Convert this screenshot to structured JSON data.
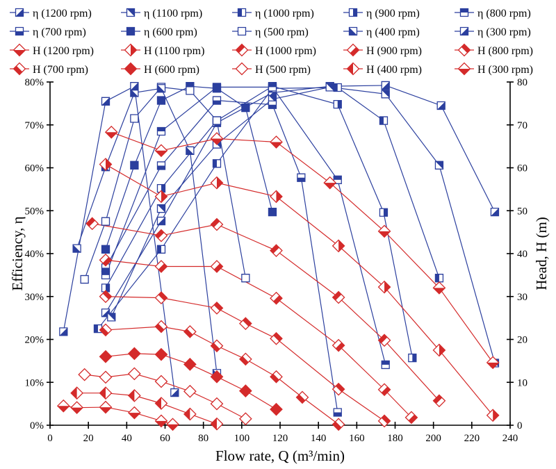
{
  "chart_data": {
    "type": "line",
    "xlabel": "Flow rate, Q (m³/min)",
    "ylabel_left": "Efficiency, η",
    "ylabel_right": "Head, H (m)",
    "xlim": [
      0,
      240
    ],
    "ylim_left": [
      0,
      80
    ],
    "ylim_right": [
      0,
      80
    ],
    "x_ticks": [
      "0",
      "20",
      "40",
      "60",
      "80",
      "100",
      "120",
      "140",
      "160",
      "180",
      "200",
      "220",
      "240"
    ],
    "y_left_ticks": [
      "0%",
      "10%",
      "20%",
      "30%",
      "40%",
      "50%",
      "60%",
      "70%",
      "80%"
    ],
    "y_right_ticks": [
      "0",
      "10",
      "20",
      "30",
      "40",
      "50",
      "60",
      "70",
      "80"
    ],
    "grid": false,
    "legend_position": "top",
    "colors": {
      "efficiency": "#2b3f9e",
      "head": "#d42a2a"
    },
    "series": [
      {
        "name": "η (1200 rpm)",
        "axis": "left",
        "marker": "square",
        "fill": "diag-lr",
        "points": [
          [
            29,
            26.2
          ],
          [
            58,
            47.6
          ],
          [
            87,
            70.5
          ],
          [
            116,
            77.5
          ],
          [
            146,
            79
          ],
          [
            175,
            79.2
          ],
          [
            204,
            74.5
          ],
          [
            232,
            49.7
          ]
        ]
      },
      {
        "name": "η (1100 rpm)",
        "axis": "left",
        "marker": "square",
        "fill": "diag-ur",
        "points": [
          [
            32,
            25.2
          ],
          [
            58,
            50.5
          ],
          [
            87,
            65.5
          ],
          [
            116,
            76
          ],
          [
            146,
            78.8
          ],
          [
            175,
            77.2
          ],
          [
            203,
            60.6
          ],
          [
            232,
            14.5
          ]
        ]
      },
      {
        "name": "η (1000 rpm)",
        "axis": "left",
        "marker": "square",
        "fill": "half-left",
        "points": [
          [
            25,
            22.5
          ],
          [
            58,
            41
          ],
          [
            87,
            61
          ],
          [
            116,
            78.5
          ],
          [
            150,
            78.7
          ],
          [
            174,
            71
          ],
          [
            203,
            34.3
          ]
        ]
      },
      {
        "name": "η (900 rpm)",
        "axis": "left",
        "marker": "square",
        "fill": "half-right",
        "points": [
          [
            29,
            32
          ],
          [
            58,
            55.2
          ],
          [
            87,
            71
          ],
          [
            116,
            79
          ],
          [
            150,
            74.8
          ],
          [
            174,
            49.6
          ],
          [
            189,
            15.7
          ]
        ]
      },
      {
        "name": "η (800 rpm)",
        "axis": "left",
        "marker": "square",
        "fill": "half-top",
        "points": [
          [
            29,
            35
          ],
          [
            58,
            68.5
          ],
          [
            87,
            78.8
          ],
          [
            116,
            78.8
          ],
          [
            150,
            57.2
          ],
          [
            175,
            14.1
          ]
        ]
      },
      {
        "name": "η (700 rpm)",
        "axis": "left",
        "marker": "square",
        "fill": "half-bottom",
        "points": [
          [
            29,
            36.7
          ],
          [
            58,
            60.5
          ],
          [
            87,
            75.7
          ],
          [
            116,
            74.7
          ],
          [
            131,
            57.7
          ],
          [
            150,
            3
          ]
        ]
      },
      {
        "name": "η (600 rpm)",
        "axis": "left",
        "marker": "square",
        "fill": "filled",
        "points": [
          [
            29,
            41
          ],
          [
            44,
            60.6
          ],
          [
            58,
            75.7
          ],
          [
            73,
            79
          ],
          [
            87,
            78.5
          ],
          [
            102,
            74
          ],
          [
            116,
            49.7
          ]
        ]
      },
      {
        "name": "η (500 rpm)",
        "axis": "left",
        "marker": "square",
        "fill": "open",
        "points": [
          [
            18,
            34
          ],
          [
            29,
            47.5
          ],
          [
            44,
            71.5
          ],
          [
            58,
            78.8
          ],
          [
            73,
            78
          ],
          [
            87,
            71
          ],
          [
            102,
            34.3
          ]
        ]
      },
      {
        "name": "η (400 rpm)",
        "axis": "left",
        "marker": "square",
        "fill": "diag-ll",
        "points": [
          [
            14,
            41.2
          ],
          [
            29,
            60.2
          ],
          [
            44,
            77.5
          ],
          [
            58,
            78.5
          ],
          [
            73,
            64
          ],
          [
            87,
            12.1
          ]
        ]
      },
      {
        "name": "η (300 rpm)",
        "axis": "left",
        "marker": "square",
        "fill": "diag-lr",
        "points": [
          [
            7,
            21.8
          ],
          [
            29,
            75.5
          ],
          [
            44,
            79
          ],
          [
            65,
            7.6
          ]
        ]
      },
      {
        "name": "H (1200 rpm)",
        "axis": "right",
        "marker": "diamond",
        "fill": "diag-lr",
        "points": [
          [
            32,
            68.3
          ],
          [
            58,
            64
          ],
          [
            87,
            66.8
          ],
          [
            118,
            66
          ],
          [
            146,
            56.5
          ],
          [
            174.4,
            45.2
          ],
          [
            203,
            32
          ],
          [
            231,
            14.6
          ]
        ]
      },
      {
        "name": "H (1100 rpm)",
        "axis": "right",
        "marker": "diamond",
        "fill": "diag-ur",
        "points": [
          [
            29,
            60.8
          ],
          [
            58,
            53.3
          ],
          [
            87,
            56.5
          ],
          [
            118,
            53.3
          ],
          [
            150.5,
            41.8
          ],
          [
            174.4,
            32.2
          ],
          [
            203,
            17.5
          ],
          [
            231,
            2.3
          ]
        ]
      },
      {
        "name": "H (1000 rpm)",
        "axis": "right",
        "marker": "diamond",
        "fill": "half-left",
        "points": [
          [
            22,
            47
          ],
          [
            58,
            44.2
          ],
          [
            87,
            46.8
          ],
          [
            118,
            40.7
          ],
          [
            150.5,
            29.8
          ],
          [
            174.4,
            19.8
          ],
          [
            203,
            5.7
          ]
        ]
      },
      {
        "name": "H (900 rpm)",
        "axis": "right",
        "marker": "diamond",
        "fill": "half-right",
        "points": [
          [
            29,
            38.5
          ],
          [
            58,
            37
          ],
          [
            87,
            37
          ],
          [
            118,
            29.6
          ],
          [
            150.5,
            18.6
          ],
          [
            174.4,
            8.3
          ],
          [
            188.5,
            1.8
          ]
        ]
      },
      {
        "name": "H (800 rpm)",
        "axis": "right",
        "marker": "diamond",
        "fill": "half-top",
        "points": [
          [
            29,
            30
          ],
          [
            58,
            29.7
          ],
          [
            87,
            27.3
          ],
          [
            102,
            23.7
          ],
          [
            118,
            20.2
          ],
          [
            150.5,
            8.4
          ],
          [
            174.4,
            1
          ]
        ]
      },
      {
        "name": "H (700 rpm)",
        "axis": "right",
        "marker": "diamond",
        "fill": "half-bottom",
        "points": [
          [
            29,
            22.2
          ],
          [
            58,
            23
          ],
          [
            73,
            21.8
          ],
          [
            87,
            18.5
          ],
          [
            102,
            15.4
          ],
          [
            118,
            11.3
          ],
          [
            131.6,
            6.5
          ],
          [
            150.5,
            0.2
          ]
        ]
      },
      {
        "name": "H (600 rpm)",
        "axis": "right",
        "marker": "diamond",
        "fill": "filled",
        "points": [
          [
            29,
            16
          ],
          [
            44,
            16.7
          ],
          [
            58,
            16.5
          ],
          [
            73,
            14.2
          ],
          [
            87,
            11.3
          ],
          [
            102,
            8
          ],
          [
            118,
            3.7
          ]
        ]
      },
      {
        "name": "H (500 rpm)",
        "axis": "right",
        "marker": "diamond",
        "fill": "open",
        "points": [
          [
            18,
            11.8
          ],
          [
            29,
            11.2
          ],
          [
            44,
            12
          ],
          [
            58,
            10.2
          ],
          [
            73,
            7.9
          ],
          [
            87,
            5
          ],
          [
            102,
            1.5
          ]
        ]
      },
      {
        "name": "H (400 rpm)",
        "axis": "right",
        "marker": "diamond",
        "fill": "diag-ll",
        "points": [
          [
            14,
            7.5
          ],
          [
            29,
            7.5
          ],
          [
            44,
            6.9
          ],
          [
            58,
            5.1
          ],
          [
            73,
            2.6
          ],
          [
            87,
            0.3
          ]
        ]
      },
      {
        "name": "H (300 rpm)",
        "axis": "right",
        "marker": "diamond",
        "fill": "diag-lr",
        "points": [
          [
            7,
            4.5
          ],
          [
            14,
            4.1
          ],
          [
            29,
            4.2
          ],
          [
            44,
            2.9
          ],
          [
            58,
            1
          ],
          [
            64,
            0.2
          ]
        ]
      }
    ]
  }
}
